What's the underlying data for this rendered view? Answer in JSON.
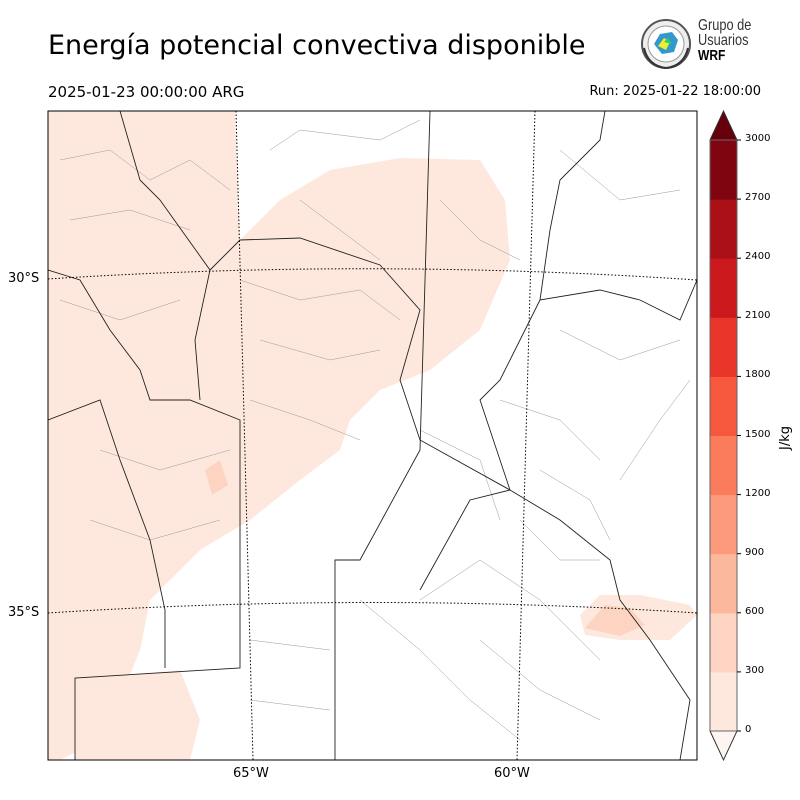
{
  "title": "Energía potencial convectiva disponible",
  "valid_time": "2025-01-23 00:00:00 ARG",
  "run_time": "Run: 2025-01-22 18:00:00",
  "logo": {
    "line1": "Grupo de",
    "line2": "Usuarios",
    "line3": "WRF"
  },
  "map": {
    "lat_labels": [
      "30°S",
      "35°S"
    ],
    "lon_labels": [
      "65°W",
      "60°W"
    ],
    "field_color": "#fee8de",
    "field_color_2": "#fdd3c1"
  },
  "colorbar": {
    "label": "J/kg",
    "ticks": [
      "0",
      "300",
      "600",
      "900",
      "1200",
      "1500",
      "1800",
      "2100",
      "2400",
      "2700",
      "3000"
    ],
    "colors": [
      "#fee8de",
      "#fdd3c1",
      "#fcb89d",
      "#fc9a7b",
      "#fb7c5c",
      "#f6583e",
      "#e83429",
      "#cb181d",
      "#ab1016",
      "#7f0510"
    ],
    "under_color": "#fff5f0",
    "over_color": "#67000d"
  }
}
